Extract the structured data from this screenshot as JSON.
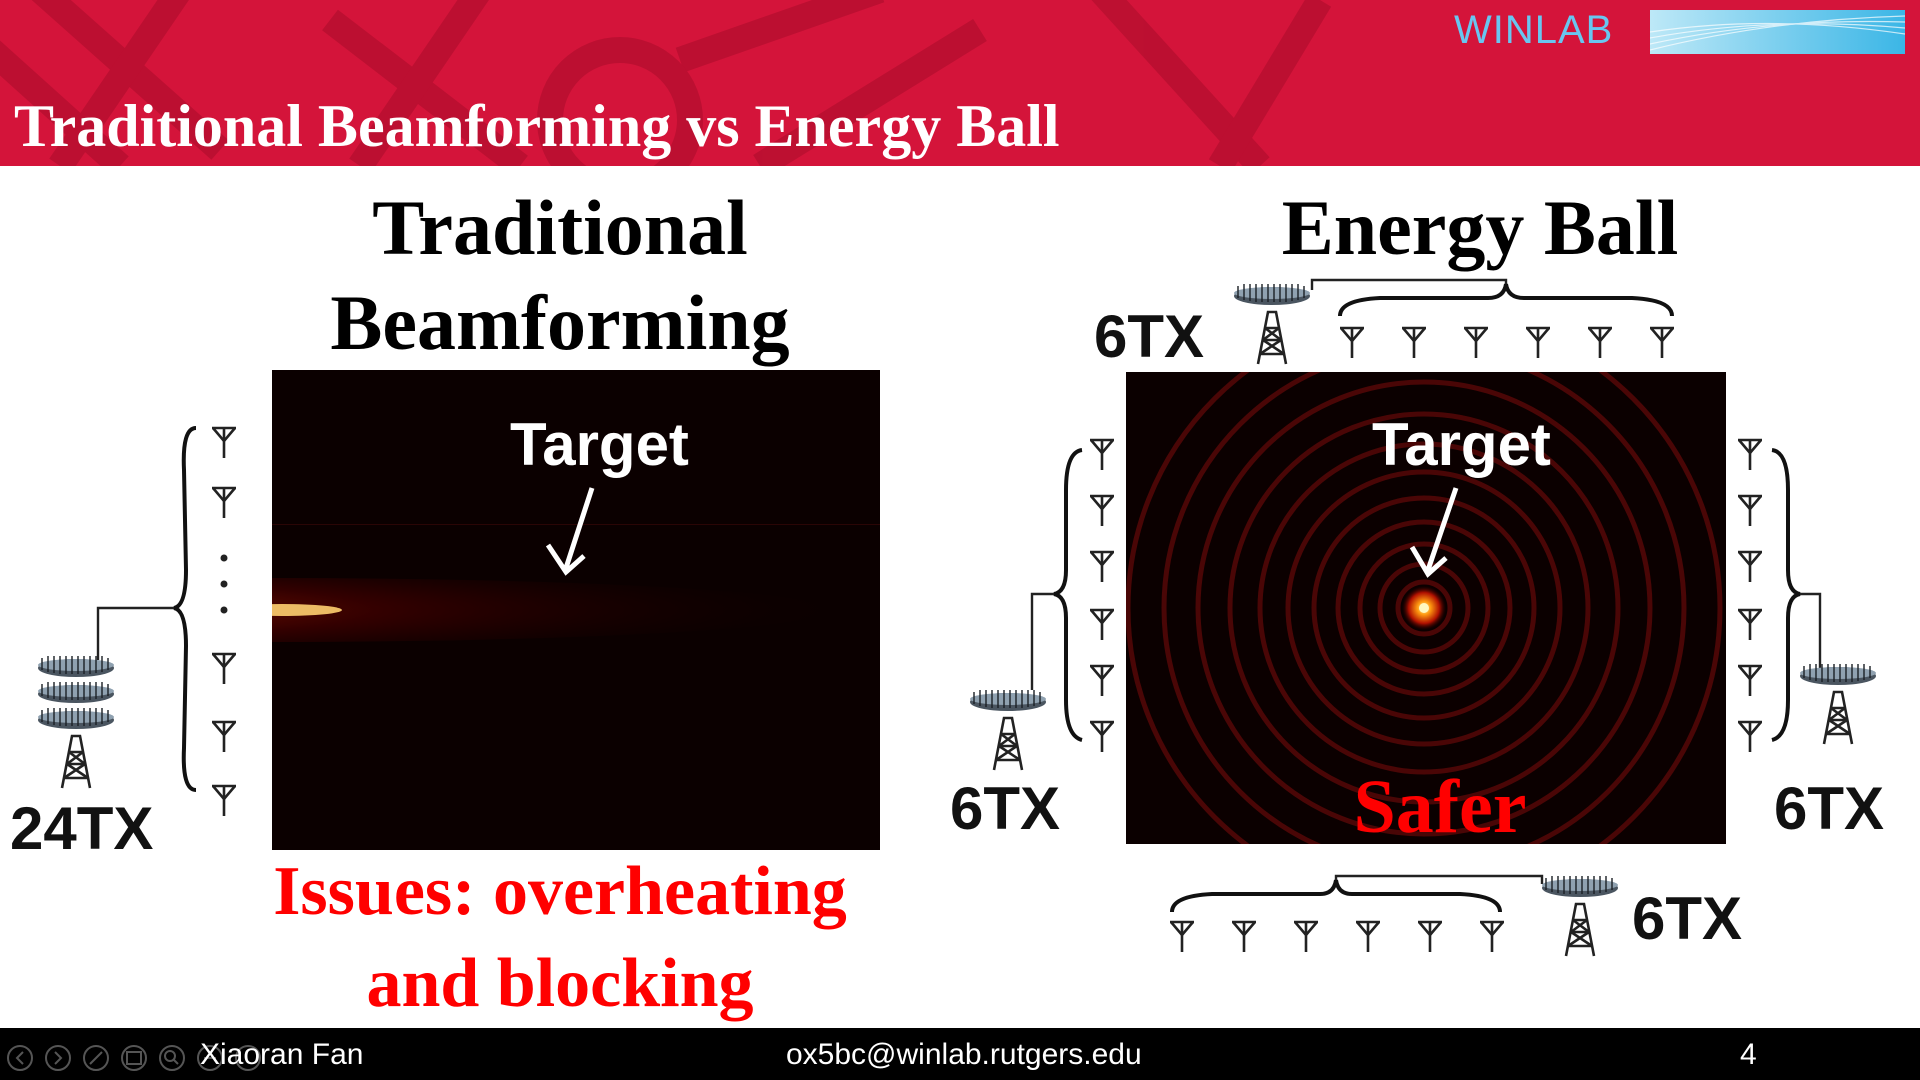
{
  "header": {
    "title": "Traditional Beamforming vs Energy Ball",
    "brand": "WINLAB",
    "colors": {
      "banner": "#d4143a",
      "brand_text": "#69c6f0"
    }
  },
  "left": {
    "heading_line1": "Traditional",
    "heading_line2": "Beamforming",
    "tx_label": "24TX",
    "target_label": "Target",
    "issues_line1": "Issues: overheating",
    "issues_line2": "and blocking"
  },
  "right": {
    "heading": "Energy Ball",
    "tx_top": "6TX",
    "tx_left": "6TX",
    "tx_right": "6TX",
    "tx_bottom": "6TX",
    "target_label": "Target",
    "safer_label": "Safer"
  },
  "footer": {
    "author": "Xiaoran Fan",
    "email": "ox5bc@winlab.rutgers.edu",
    "page_number": "4",
    "nav_icons": [
      "prev-icon",
      "next-icon",
      "pen-icon",
      "slides-icon",
      "zoom-icon",
      "more-icon"
    ]
  }
}
